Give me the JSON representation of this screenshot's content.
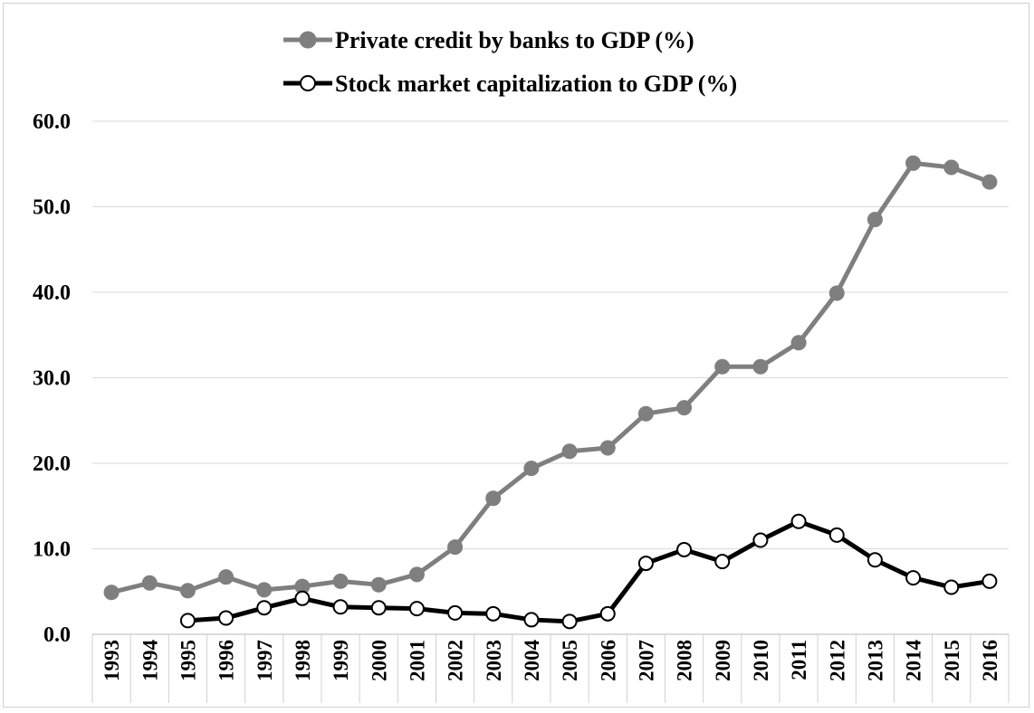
{
  "chart_data": {
    "type": "line",
    "categories": [
      "1993",
      "1994",
      "1995",
      "1996",
      "1997",
      "1998",
      "1999",
      "2000",
      "2001",
      "2002",
      "2003",
      "2004",
      "2005",
      "2006",
      "2007",
      "2008",
      "2009",
      "2010",
      "2011",
      "2012",
      "2013",
      "2014",
      "2015",
      "2016"
    ],
    "series": [
      {
        "name": "Private credit by banks to GDP (%)",
        "color": "#7f7f7f",
        "marker": "filled-circle",
        "values": [
          4.9,
          6.0,
          5.1,
          6.7,
          5.2,
          5.6,
          6.2,
          5.8,
          7.0,
          10.2,
          15.9,
          19.4,
          21.4,
          21.8,
          25.8,
          26.5,
          31.3,
          31.3,
          34.1,
          39.9,
          48.5,
          55.1,
          54.6,
          52.9
        ]
      },
      {
        "name": "Stock market capitalization to GDP (%)",
        "color": "#000000",
        "marker": "open-circle",
        "values": [
          null,
          null,
          1.6,
          1.9,
          3.1,
          4.2,
          3.2,
          3.1,
          3.0,
          2.5,
          2.4,
          1.7,
          1.5,
          2.4,
          8.3,
          9.9,
          8.5,
          11.0,
          13.2,
          11.6,
          8.7,
          6.6,
          5.5,
          6.2
        ]
      }
    ],
    "y_ticks": [
      "0.0",
      "10.0",
      "20.0",
      "30.0",
      "40.0",
      "50.0",
      "60.0"
    ],
    "ylim": [
      0,
      60
    ],
    "grid": "horizontal",
    "legend_position": "top"
  }
}
